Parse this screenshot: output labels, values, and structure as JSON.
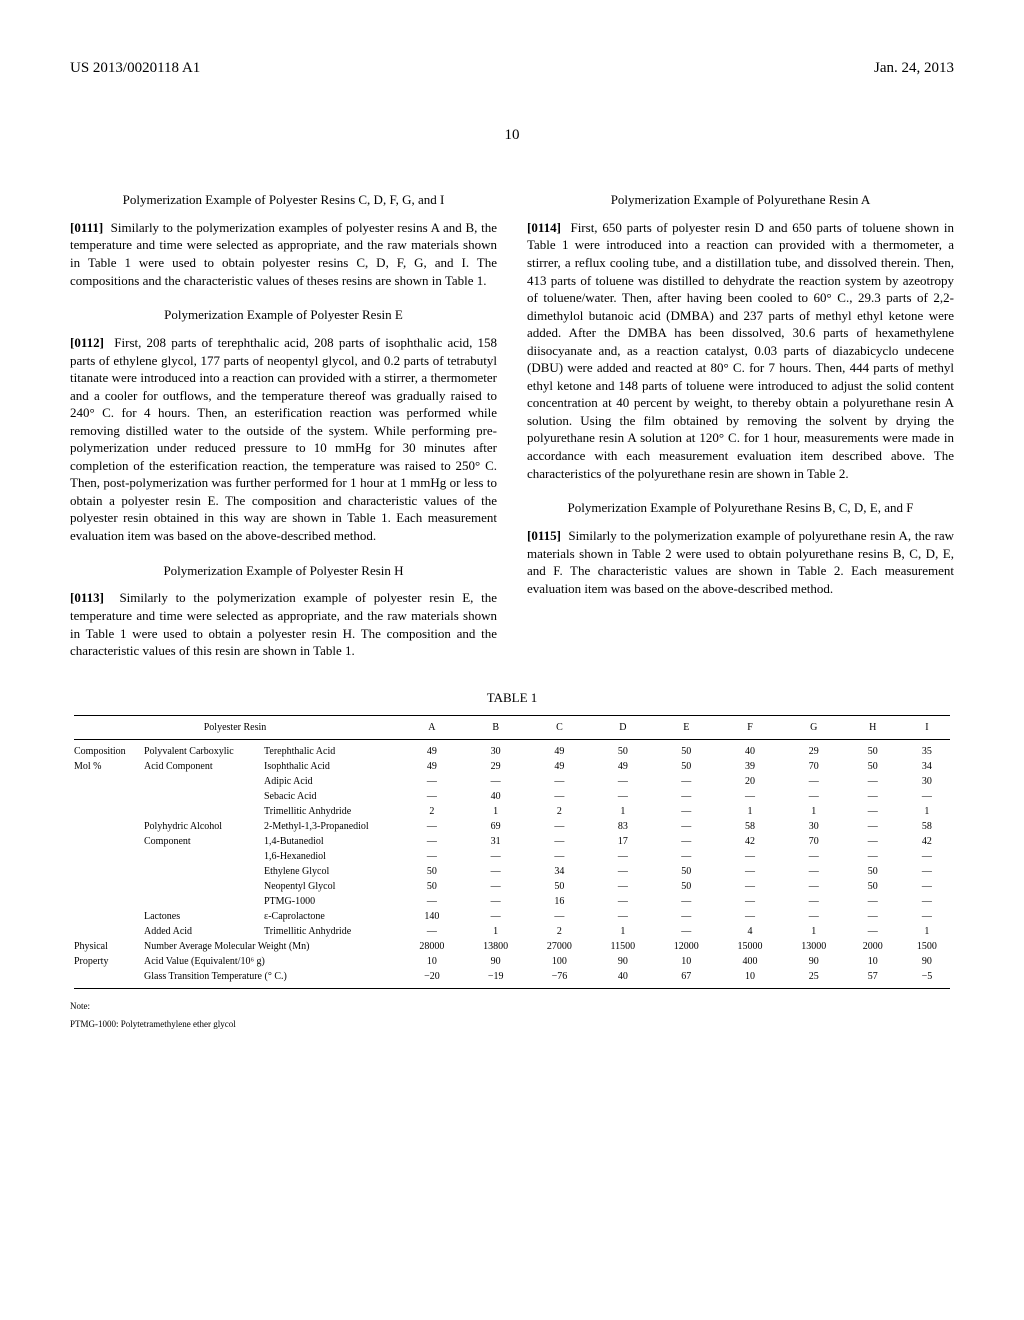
{
  "header": {
    "left": "US 2013/0020118 A1",
    "right": "Jan. 24, 2013"
  },
  "pageNumber": "10",
  "leftCol": {
    "sec1": {
      "title": "Polymerization Example of Polyester Resins C, D, F, G, and I"
    },
    "p0111": {
      "num": "[0111]",
      "text": "Similarly to the polymerization examples of polyester resins A and B, the temperature and time were selected as appropriate, and the raw materials shown in Table 1 were used to obtain polyester resins C, D, F, G, and I. The compositions and the characteristic values of theses resins are shown in Table 1."
    },
    "sec2": {
      "title": "Polymerization Example of Polyester Resin E"
    },
    "p0112": {
      "num": "[0112]",
      "text": "First, 208 parts of terephthalic acid, 208 parts of isophthalic acid, 158 parts of ethylene glycol, 177 parts of neopentyl glycol, and 0.2 parts of tetrabutyl titanate were introduced into a reaction can provided with a stirrer, a thermometer and a cooler for outflows, and the temperature thereof was gradually raised to 240° C. for 4 hours. Then, an esterification reaction was performed while removing distilled water to the outside of the system. While performing pre-polymerization under reduced pressure to 10 mmHg for 30 minutes after completion of the esterification reaction, the temperature was raised to 250° C. Then, post-polymerization was further performed for 1 hour at 1 mmHg or less to obtain a polyester resin E. The composition and characteristic values of the polyester resin obtained in this way are shown in Table 1. Each measurement evaluation item was based on the above-described method."
    },
    "sec3": {
      "title": "Polymerization Example of Polyester Resin H"
    },
    "p0113": {
      "num": "[0113]",
      "text": "Similarly to the polymerization example of polyester resin E, the temperature and time were selected as appropriate, and the raw materials shown in Table 1 were used to obtain a polyester resin H. The composition and the characteristic values of this resin are shown in Table 1."
    }
  },
  "rightCol": {
    "sec1": {
      "title": "Polymerization Example of Polyurethane Resin A"
    },
    "p0114": {
      "num": "[0114]",
      "text": "First, 650 parts of polyester resin D and 650 parts of toluene shown in Table 1 were introduced into a reaction can provided with a thermometer, a stirrer, a reflux cooling tube, and a distillation tube, and dissolved therein. Then, 413 parts of toluene was distilled to dehydrate the reaction system by azeotropy of toluene/water. Then, after having been cooled to 60° C., 29.3 parts of 2,2-dimethylol butanoic acid (DMBA) and 237 parts of methyl ethyl ketone were added. After the DMBA has been dissolved, 30.6 parts of hexamethylene diisocyanate and, as a reaction catalyst, 0.03 parts of diazabicyclo undecene (DBU) were added and reacted at 80° C. for 7 hours. Then, 444 parts of methyl ethyl ketone and 148 parts of toluene were introduced to adjust the solid content concentration at 40 percent by weight, to thereby obtain a polyurethane resin A solution. Using the film obtained by removing the solvent by drying the polyurethane resin A solution at 120° C. for 1 hour, measurements were made in accordance with each measurement evaluation item described above. The characteristics of the polyurethane resin are shown in Table 2."
    },
    "sec2": {
      "title": "Polymerization Example of Polyurethane Resins B, C, D, E, and F"
    },
    "p0115": {
      "num": "[0115]",
      "text": "Similarly to the polymerization example of polyurethane resin A, the raw materials shown in Table 2 were used to obtain polyurethane resins B, C, D, E, and F. The characteristic values are shown in Table 2. Each measurement evaluation item was based on the above-described method."
    }
  },
  "table": {
    "caption": "TABLE 1",
    "headResin": "Polyester Resin",
    "cols": [
      "A",
      "B",
      "C",
      "D",
      "E",
      "F",
      "G",
      "H",
      "I"
    ],
    "groups": [
      {
        "g1": "Composition",
        "g2": "Polyvalent Carboxylic",
        "g3": "Terephthalic Acid",
        "v": [
          "49",
          "30",
          "49",
          "50",
          "50",
          "40",
          "29",
          "50",
          "35"
        ]
      },
      {
        "g1": "Mol %",
        "g2": "Acid Component",
        "g3": "Isophthalic Acid",
        "v": [
          "49",
          "29",
          "49",
          "49",
          "50",
          "39",
          "70",
          "50",
          "34"
        ]
      },
      {
        "g1": "",
        "g2": "",
        "g3": "Adipic Acid",
        "v": [
          "—",
          "—",
          "—",
          "—",
          "—",
          "20",
          "—",
          "—",
          "30"
        ]
      },
      {
        "g1": "",
        "g2": "",
        "g3": "Sebacic Acid",
        "v": [
          "—",
          "40",
          "—",
          "—",
          "—",
          "—",
          "—",
          "—",
          "—"
        ]
      },
      {
        "g1": "",
        "g2": "",
        "g3": "Trimellitic Anhydride",
        "v": [
          "2",
          "1",
          "2",
          "1",
          "—",
          "1",
          "1",
          "—",
          "1"
        ]
      },
      {
        "g1": "",
        "g2": "Polyhydric Alcohol",
        "g3": "2-Methyl-1,3-Propanediol",
        "v": [
          "—",
          "69",
          "—",
          "83",
          "—",
          "58",
          "30",
          "—",
          "58"
        ]
      },
      {
        "g1": "",
        "g2": "Component",
        "g3": "1,4-Butanediol",
        "v": [
          "—",
          "31",
          "—",
          "17",
          "—",
          "42",
          "70",
          "—",
          "42"
        ]
      },
      {
        "g1": "",
        "g2": "",
        "g3": "1,6-Hexanediol",
        "v": [
          "—",
          "—",
          "—",
          "—",
          "—",
          "—",
          "—",
          "—",
          "—"
        ]
      },
      {
        "g1": "",
        "g2": "",
        "g3": "Ethylene Glycol",
        "v": [
          "50",
          "—",
          "34",
          "—",
          "50",
          "—",
          "—",
          "50",
          "—"
        ]
      },
      {
        "g1": "",
        "g2": "",
        "g3": "Neopentyl Glycol",
        "v": [
          "50",
          "—",
          "50",
          "—",
          "50",
          "—",
          "—",
          "50",
          "—"
        ]
      },
      {
        "g1": "",
        "g2": "",
        "g3": "PTMG-1000",
        "v": [
          "—",
          "—",
          "16",
          "—",
          "—",
          "—",
          "—",
          "—",
          "—"
        ]
      },
      {
        "g1": "",
        "g2": "Lactones",
        "g3": "ε-Caprolactone",
        "v": [
          "140",
          "—",
          "—",
          "—",
          "—",
          "—",
          "—",
          "—",
          "—"
        ]
      },
      {
        "g1": "",
        "g2": "Added Acid",
        "g3": "Trimellitic Anhydride",
        "v": [
          "—",
          "1",
          "2",
          "1",
          "—",
          "4",
          "1",
          "—",
          "1"
        ]
      },
      {
        "g1": "Physical",
        "g2": "Number Average Molecular Weight (Mn)",
        "g3": "",
        "v": [
          "28000",
          "13800",
          "27000",
          "11500",
          "12000",
          "15000",
          "13000",
          "2000",
          "1500"
        ]
      },
      {
        "g1": "Property",
        "g2": "Acid Value (Equivalent/10⁶ g)",
        "g3": "",
        "v": [
          "10",
          "90",
          "100",
          "90",
          "10",
          "400",
          "90",
          "10",
          "90"
        ]
      },
      {
        "g1": "",
        "g2": "Glass Transition Temperature (° C.)",
        "g3": "",
        "v": [
          "−20",
          "−19",
          "−76",
          "40",
          "67",
          "10",
          "25",
          "57",
          "−5"
        ]
      }
    ],
    "note1": "Note:",
    "note2": "PTMG-1000: Polytetramethylene ether glycol"
  }
}
